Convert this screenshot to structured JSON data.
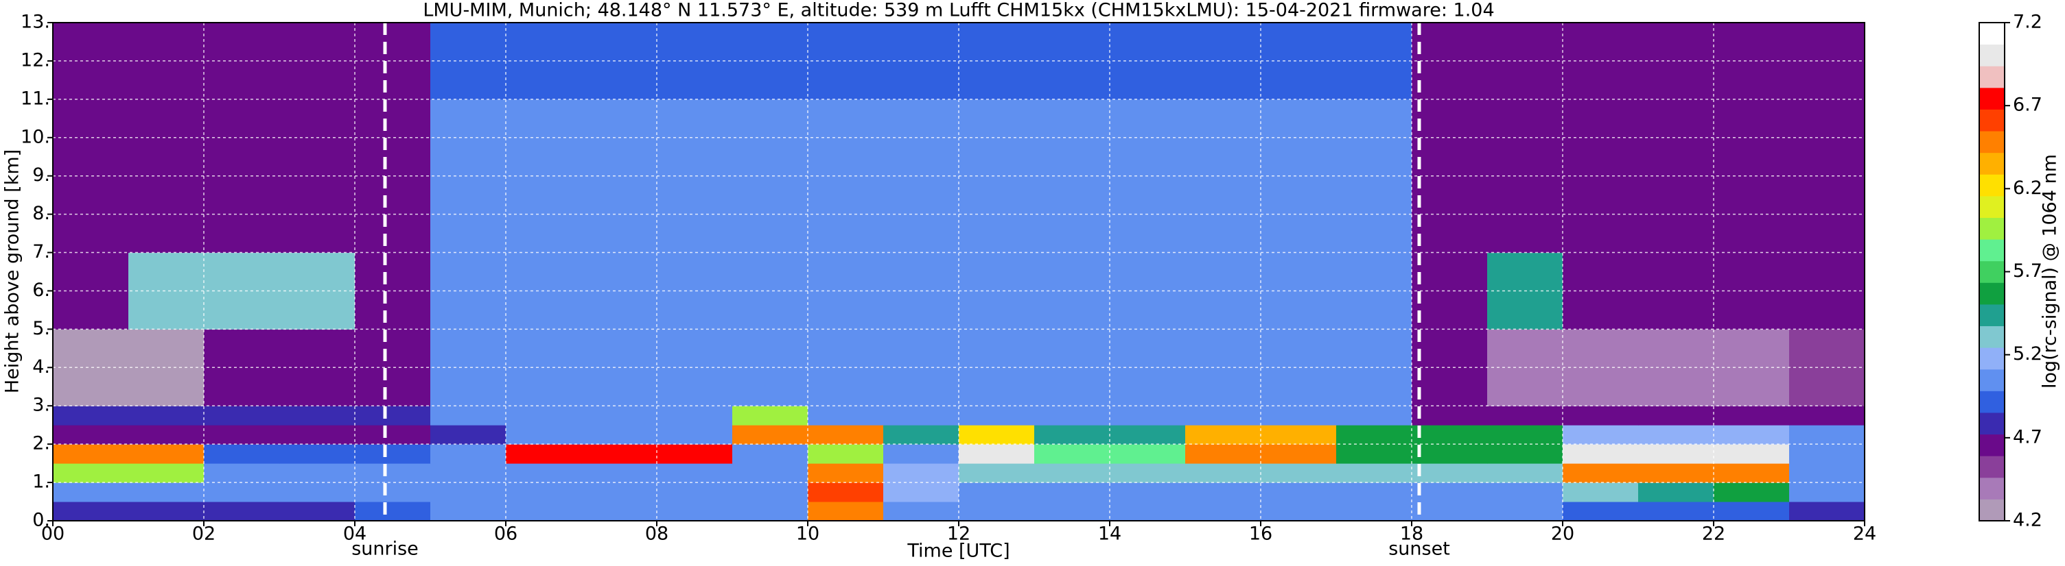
{
  "chart_data": {
    "type": "heatmap",
    "title": "LMU-MIM, Munich; 48.148° N 11.573° E, altitude: 539 m    Lufft CHM15kx (CHM15kxLMU): 15-04-2021    firmware: 1.04",
    "xlabel": "Time [UTC]",
    "ylabel": "Height above ground [km]",
    "colorbar_label": "log(rc-signal) @ 1064 nm",
    "xlim": [
      0,
      24
    ],
    "ylim": [
      0,
      13
    ],
    "clim": [
      4.2,
      7.2
    ],
    "xticks": [
      {
        "value": 0,
        "label": "00"
      },
      {
        "value": 2,
        "label": "02"
      },
      {
        "value": 4,
        "label": "04"
      },
      {
        "value": 6,
        "label": "06"
      },
      {
        "value": 8,
        "label": "08"
      },
      10,
      12,
      14,
      16,
      18,
      20,
      22,
      24
    ],
    "yticks": [
      {
        "value": 0,
        "label": "0."
      },
      {
        "value": 1,
        "label": "1."
      },
      {
        "value": 2,
        "label": "2."
      },
      {
        "value": 3,
        "label": "3."
      },
      {
        "value": 4,
        "label": "4."
      },
      {
        "value": 5,
        "label": "5."
      },
      {
        "value": 6,
        "label": "6."
      },
      {
        "value": 7,
        "label": "7."
      },
      {
        "value": 8,
        "label": "8."
      },
      {
        "value": 9,
        "label": "9."
      },
      {
        "value": 10,
        "label": "10."
      },
      {
        "value": 11,
        "label": "11."
      },
      {
        "value": 12,
        "label": "12."
      },
      {
        "value": 13,
        "label": "13."
      }
    ],
    "cticks": [
      4.2,
      4.7,
      5.2,
      5.7,
      6.2,
      6.7,
      7.2
    ],
    "grid": true,
    "colors": [
      "#b09ab8",
      "#a87ab8",
      "#8a3f9a",
      "#6a0a8a",
      "#3a2bb0",
      "#3060e0",
      "#6090f0",
      "#90b0f8",
      "#80c8d0",
      "#20a090",
      "#10a040",
      "#40d060",
      "#60f090",
      "#a0f040",
      "#e0f020",
      "#ffe000",
      "#ffb000",
      "#ff8000",
      "#ff4000",
      "#ff0000",
      "#f0c0c0",
      "#e8e8e8",
      "#ffffff"
    ],
    "x_bins": [
      0,
      1,
      2,
      3,
      4,
      5,
      6,
      7,
      8,
      9,
      10,
      11,
      12,
      13,
      14,
      15,
      16,
      17,
      18,
      19,
      20,
      21,
      22,
      23,
      24
    ],
    "y_bins": [
      0,
      0.5,
      1,
      1.5,
      2,
      2.5,
      3,
      5,
      7,
      9,
      11,
      13
    ],
    "z": [
      [
        4.8,
        4.8,
        4.8,
        4.8,
        4.9,
        5.0,
        5.0,
        5.0,
        5.1,
        5.0,
        6.5,
        5.0,
        5.0,
        5.0,
        5.0,
        5.0,
        5.0,
        5.0,
        5.0,
        5.0,
        4.9,
        4.9,
        4.9,
        4.8
      ],
      [
        5.1,
        5.1,
        5.1,
        5.1,
        5.1,
        5.1,
        5.1,
        5.1,
        5.1,
        5.1,
        6.6,
        5.2,
        5.1,
        5.1,
        5.1,
        5.1,
        5.1,
        5.1,
        5.1,
        5.1,
        5.3,
        5.5,
        5.6,
        5.1
      ],
      [
        6.0,
        6.0,
        5.0,
        5.0,
        5.0,
        5.0,
        5.0,
        5.0,
        5.0,
        5.0,
        6.5,
        5.2,
        5.3,
        5.3,
        5.3,
        5.3,
        5.3,
        5.3,
        5.3,
        5.3,
        6.5,
        6.5,
        6.5,
        5.0
      ],
      [
        6.5,
        6.5,
        4.9,
        4.9,
        4.9,
        5.0,
        6.8,
        6.8,
        6.8,
        5.0,
        6.0,
        5.0,
        7.0,
        5.8,
        5.8,
        6.5,
        6.5,
        5.6,
        5.6,
        5.6,
        7.0,
        7.0,
        7.0,
        5.0
      ],
      [
        4.7,
        4.7,
        4.7,
        4.7,
        4.7,
        4.8,
        5.0,
        5.0,
        5.0,
        6.5,
        6.5,
        5.5,
        6.2,
        5.4,
        5.4,
        6.3,
        6.3,
        5.6,
        5.6,
        5.6,
        5.2,
        5.2,
        5.2,
        5.0
      ],
      [
        4.75,
        4.75,
        4.75,
        4.75,
        4.75,
        5.0,
        5.0,
        5.0,
        5.0,
        6.0,
        5.0,
        5.0,
        5.0,
        5.0,
        5.0,
        5.0,
        5.0,
        5.0,
        4.6,
        4.6,
        4.6,
        4.6,
        4.6,
        4.6
      ],
      [
        4.3,
        4.3,
        4.6,
        4.6,
        4.6,
        5.0,
        5.0,
        5.0,
        5.0,
        5.0,
        5.0,
        5.0,
        5.0,
        5.0,
        5.0,
        5.0,
        5.0,
        5.0,
        4.6,
        4.4,
        4.4,
        4.4,
        4.4,
        4.5
      ],
      [
        4.6,
        5.3,
        5.3,
        5.3,
        4.6,
        5.0,
        5.0,
        5.0,
        5.0,
        5.0,
        5.0,
        5.0,
        5.0,
        5.0,
        5.0,
        5.0,
        5.0,
        5.0,
        4.6,
        5.5,
        4.6,
        4.6,
        4.6,
        4.6
      ],
      [
        4.6,
        4.6,
        4.6,
        4.6,
        4.6,
        5.0,
        5.0,
        5.0,
        5.0,
        5.0,
        5.0,
        5.0,
        5.0,
        5.0,
        5.0,
        5.0,
        5.0,
        5.0,
        4.6,
        4.6,
        4.6,
        4.6,
        4.6,
        4.6
      ],
      [
        4.6,
        4.6,
        4.6,
        4.6,
        4.6,
        5.0,
        5.0,
        5.0,
        5.0,
        5.0,
        5.0,
        5.0,
        5.0,
        5.0,
        5.0,
        5.0,
        5.0,
        5.0,
        4.6,
        4.6,
        4.6,
        4.6,
        4.6,
        4.6
      ],
      [
        4.6,
        4.6,
        4.6,
        4.6,
        4.6,
        4.9,
        4.9,
        4.9,
        4.9,
        4.9,
        4.9,
        4.9,
        4.9,
        4.9,
        4.9,
        4.9,
        4.9,
        4.9,
        4.6,
        4.6,
        4.6,
        4.6,
        4.6,
        4.6
      ]
    ],
    "annotations": [
      {
        "text": "sunrise",
        "x": 4.4
      },
      {
        "text": "sunset",
        "x": 18.1
      }
    ]
  }
}
